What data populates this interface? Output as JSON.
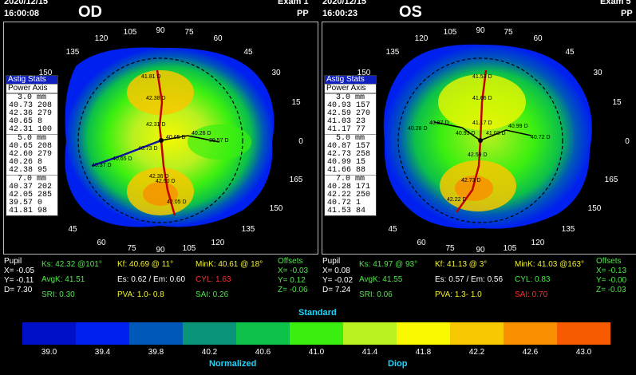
{
  "od": {
    "date": "2020/12/15",
    "time": "16:00:08",
    "eye": "OD",
    "exam": "Exam 1",
    "mode": "PP",
    "stats_tabs": [
      "Astig Stats",
      "Power Axis"
    ],
    "stats": [
      {
        "zone": "3.0 mm",
        "rows": [
          "40.73 208",
          "42.36 279",
          "40.65  8",
          "42.31 100"
        ]
      },
      {
        "zone": "5.0 mm",
        "rows": [
          "40.65 208",
          "42.60 279",
          "40.26  8",
          "42.38  95"
        ]
      },
      {
        "zone": "7.0 mm",
        "rows": [
          "40.37 202",
          "42.05 285",
          "39.57  0",
          "41.81  98"
        ]
      }
    ],
    "map_labels": [
      "41.81 D",
      "42.38 D",
      "42.31 D",
      "40.65 D",
      "40.26 D",
      "39.57 D",
      "40.73 D",
      "40.65 D",
      "40.37 D",
      "42.36 D",
      "42.60 D",
      "42.05 D"
    ],
    "pupil": {
      "title": "Pupil",
      "x": "X= -0.05",
      "y": "Y= -0.11",
      "d": "D=  7.30"
    },
    "ks": "Ks: 42.32 @101°",
    "avgk": "AvgK: 41.51",
    "sri": "SRI: 0.30",
    "kf": "Kf: 40.69 @ 11°",
    "es": "Es: 0.62 / Em: 0.60",
    "pva": "PVA:  1.0-  0.8",
    "mink": "MinK: 40.61 @ 18°",
    "cyl": "CYL:  1.63",
    "sai": "SAI: 0.26",
    "offsets": {
      "title": "Offsets",
      "x": "X= -0.03",
      "y": "Y= 0.12",
      "z": "Z= -0.06"
    }
  },
  "os": {
    "date": "2020/12/15",
    "time": "16:00:23",
    "eye": "OS",
    "exam": "Exam 5",
    "mode": "PP",
    "stats_tabs": [
      "Astig Stats",
      "Power Axis"
    ],
    "stats": [
      {
        "zone": "3.0 mm",
        "rows": [
          "40.93 157",
          "42.59 270",
          "41.03  23",
          "41.17  77"
        ]
      },
      {
        "zone": "5.0 mm",
        "rows": [
          "40.87 157",
          "42.73 258",
          "40.99  15",
          "41.66  88"
        ]
      },
      {
        "zone": "7.0 mm",
        "rows": [
          "40.28 171",
          "42.22 250",
          "40.72  1",
          "41.53  84"
        ]
      }
    ],
    "map_labels": [
      "41.53 D",
      "41.66 D",
      "40.28 D",
      "40.87 D",
      "41.17 D",
      "40.99 D",
      "40.93 D",
      "41.03 D",
      "40.72 D",
      "42.59 D",
      "42.73 D",
      "42.22 D"
    ],
    "pupil": {
      "title": "Pupil",
      "x": "X=  0.08",
      "y": "Y= -0.02",
      "d": "D=  7.24"
    },
    "ks": "Ks: 41.97 @ 93°",
    "avgk": "AvgK: 41.55",
    "sri": "SRI: 0.06",
    "kf": "Kf: 41.13 @  3°",
    "es": "Es: 0.57 / Em: 0.56",
    "pva": "PVA:  1.3-  1.0",
    "mink": "MinK: 41.03 @163°",
    "cyl": "CYL:  0.83",
    "sai": "SAI: 0.70",
    "offsets": {
      "title": "Offsets",
      "x": "X= -0.13",
      "y": "Y= -0.00",
      "z": "Z= -0.03"
    }
  },
  "axis_labels": [
    "0",
    "15",
    "30",
    "45",
    "60",
    "75",
    "90",
    "105",
    "120",
    "135",
    "150",
    "165"
  ],
  "scale": {
    "title": "Standard",
    "footer_left": "Normalized",
    "footer_right": "Diop",
    "values": [
      "39.0",
      "39.4",
      "39.8",
      "40.2",
      "40.6",
      "41.0",
      "41.4",
      "41.8",
      "42.2",
      "42.6",
      "43.0"
    ],
    "colors": [
      "#0010c8",
      "#0020f0",
      "#0058b8",
      "#0a9478",
      "#0cc04a",
      "#3aef10",
      "#b8f020",
      "#f8f800",
      "#f8c800",
      "#f89000",
      "#f85a00"
    ]
  }
}
